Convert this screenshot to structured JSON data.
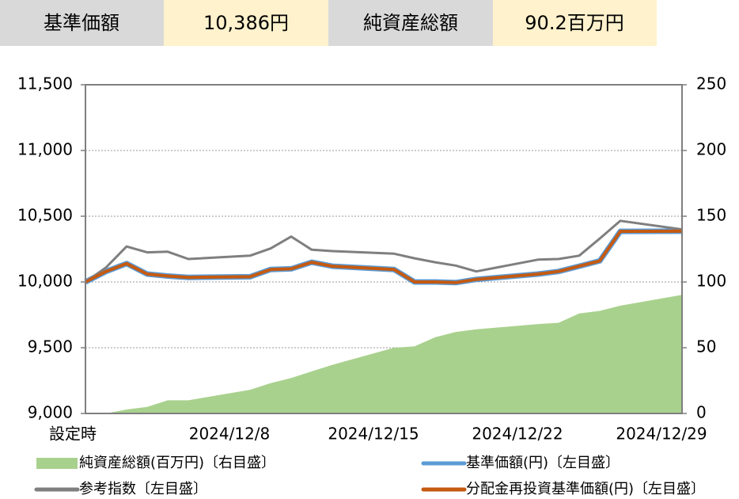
{
  "header": {
    "cells": [
      "基準価額",
      "10,386円",
      "純資産総額",
      "90.2百万円"
    ]
  },
  "chart_data": {
    "type": "line",
    "x": [
      "2024/12/1",
      "2024/12/2",
      "2024/12/3",
      "2024/12/4",
      "2024/12/5",
      "2024/12/6",
      "2024/12/9",
      "2024/12/10",
      "2024/12/11",
      "2024/12/12",
      "2024/12/13",
      "2024/12/16",
      "2024/12/17",
      "2024/12/18",
      "2024/12/19",
      "2024/12/20",
      "2024/12/23",
      "2024/12/24",
      "2024/12/25",
      "2024/12/26",
      "2024/12/27",
      "2024/12/30"
    ],
    "series": [
      {
        "name": "純資産総額(百万円)〔右目盛〕",
        "type": "area",
        "axis": "y2",
        "color": "#a9d18e",
        "values": [
          0,
          0,
          3,
          5,
          10,
          10,
          18,
          23,
          27,
          32,
          37,
          50,
          51,
          58,
          62,
          64,
          68,
          69,
          76,
          78,
          82,
          90.2
        ]
      },
      {
        "name": "基準価額(円)〔左目盛〕",
        "color": "#5b9bd5",
        "values": [
          10000,
          10080,
          10140,
          10060,
          10045,
          10035,
          10040,
          10095,
          10100,
          10150,
          10120,
          10095,
          10000,
          10000,
          9995,
          10020,
          10060,
          10080,
          10120,
          10160,
          10385,
          10386
        ]
      },
      {
        "name": "参考指数〔左目盛〕",
        "color": "#7f7f7f",
        "values": [
          10000,
          10110,
          10270,
          10225,
          10230,
          10175,
          10200,
          10255,
          10345,
          10245,
          10235,
          10215,
          10180,
          10150,
          10125,
          10080,
          10170,
          10175,
          10200,
          10330,
          10465,
          10400
        ]
      },
      {
        "name": "分配金再投資基準価額(円)〔左目盛〕",
        "color": "#c55a11",
        "values": [
          10000,
          10080,
          10140,
          10060,
          10045,
          10035,
          10040,
          10095,
          10100,
          10150,
          10120,
          10095,
          10000,
          10000,
          9995,
          10020,
          10060,
          10080,
          10120,
          10160,
          10385,
          10386
        ]
      }
    ],
    "xlim": [
      "2024/12/1",
      "2024/12/30"
    ],
    "xticks": [
      {
        "value": "2024/12/1",
        "label": "設定時"
      },
      "2024/12/8",
      "2024/12/15",
      "2024/12/22",
      "2024/12/29"
    ],
    "ylim": [
      9000,
      11500
    ],
    "yticks": [
      {
        "value": 9000,
        "label": "9,000"
      },
      {
        "value": 9500,
        "label": "9,500"
      },
      {
        "value": 10000,
        "label": "10,000"
      },
      {
        "value": 10500,
        "label": "10,500"
      },
      {
        "value": 11000,
        "label": "11,000"
      },
      {
        "value": 11500,
        "label": "11,500"
      }
    ],
    "y2lim": [
      0,
      250
    ],
    "y2ticks": [
      0,
      50,
      100,
      150,
      200,
      250
    ],
    "grid": true
  }
}
